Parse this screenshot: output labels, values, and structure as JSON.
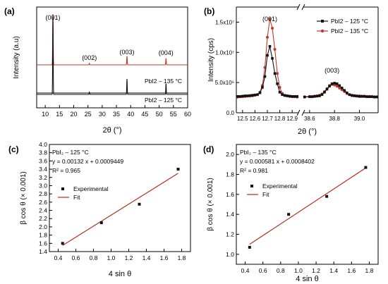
{
  "colors": {
    "red": "#c0392b",
    "black": "#111111",
    "dark_red": "#b03020"
  },
  "panels": {
    "a": {
      "label": "(a)"
    },
    "b": {
      "label": "(b)"
    },
    "c": {
      "label": "(c)"
    },
    "d": {
      "label": "(d)"
    }
  },
  "chart_data": [
    {
      "panel": "a",
      "type": "line",
      "xlabel": "2θ (°)",
      "ylabel": "Intensity (a.u)",
      "xlim": [
        7,
        60
      ],
      "xticks": [
        10,
        15,
        20,
        25,
        30,
        35,
        40,
        45,
        50,
        55,
        60
      ],
      "grid": false,
      "series": [
        {
          "name": "PbI2 – 135 °C",
          "color": "#c0392b",
          "peaks": [
            {
              "x": 12.7,
              "h": 1.0
            },
            {
              "x": 25.5,
              "h": 0.03
            },
            {
              "x": 38.7,
              "h": 0.17
            },
            {
              "x": 52.4,
              "h": 0.13
            }
          ]
        },
        {
          "name": "PbI2 – 125 °C",
          "color": "#111111",
          "peaks": [
            {
              "x": 12.7,
              "h": 1.0
            },
            {
              "x": 25.5,
              "h": 0.03
            },
            {
              "x": 38.7,
              "h": 0.2
            },
            {
              "x": 52.4,
              "h": 0.14
            }
          ]
        }
      ],
      "annotations": [
        {
          "text": "(001)",
          "x": 12.7
        },
        {
          "text": "(002)",
          "x": 25.5
        },
        {
          "text": "(003)",
          "x": 38.7
        },
        {
          "text": "(004)",
          "x": 52.4
        }
      ],
      "trace_labels": [
        "PbI2 – 135 °C",
        "PbI2 – 125 °C"
      ]
    },
    {
      "panel": "b",
      "type": "line",
      "xlabel": "2θ (°)",
      "ylabel": "Intensity (cps)",
      "ylim": [
        0,
        17500000.0
      ],
      "yticks": [
        "0.0",
        "5.0x10⁶",
        "1.0x10⁷",
        "1.5x10⁷"
      ],
      "ytick_values": [
        0,
        5000000,
        10000000,
        15000000
      ],
      "xlim_left": [
        12.45,
        12.95
      ],
      "xlim_right": [
        38.55,
        39.15
      ],
      "xticks_left": [
        "12.5",
        "12.6",
        "12.7",
        "12.8",
        "12.9"
      ],
      "xticks_left_values": [
        12.5,
        12.6,
        12.7,
        12.8,
        12.9
      ],
      "xticks_right": [
        "38.6",
        "38.8",
        "39.0"
      ],
      "xticks_right_values": [
        38.6,
        38.8,
        39.0
      ],
      "legend_position": "top-right",
      "grid": false,
      "annotations": [
        {
          "text": "(001)",
          "x": 12.72,
          "segment": "left"
        },
        {
          "text": "(003)",
          "x": 38.78,
          "segment": "right"
        }
      ],
      "series": [
        {
          "name": "PbI2 – 125 °C",
          "color": "#111111",
          "marker": "square",
          "left": {
            "x": [
              12.46,
              12.48,
              12.5,
              12.52,
              12.54,
              12.56,
              12.58,
              12.6,
              12.62,
              12.64,
              12.66,
              12.68,
              12.7,
              12.72,
              12.74,
              12.76,
              12.78,
              12.8,
              12.82,
              12.84,
              12.86,
              12.88,
              12.9,
              12.92,
              12.94
            ],
            "y": [
              2700000,
              2700000,
              2750000,
              2800000,
              2800000,
              2850000,
              2900000,
              2950000,
              3000000,
              3300000,
              4200000,
              6000000,
              9500000,
              11000000,
              9000000,
              6500000,
              4800000,
              3400000,
              3000000,
              2850000,
              2800000,
              2750000,
              2700000,
              2700000,
              2700000
            ]
          },
          "right": {
            "x": [
              38.56,
              38.6,
              38.62,
              38.64,
              38.66,
              38.68,
              38.7,
              38.72,
              38.74,
              38.76,
              38.78,
              38.8,
              38.82,
              38.84,
              38.86,
              38.88,
              38.9,
              38.92,
              38.94,
              38.96,
              38.98,
              39.0,
              39.02,
              39.04,
              39.06,
              39.08,
              39.1,
              39.12,
              39.14
            ],
            "y": [
              2600000,
              2650000,
              2650000,
              2700000,
              2750000,
              2800000,
              3000000,
              3400000,
              3900000,
              4400000,
              4800000,
              4900000,
              4800000,
              4500000,
              4100000,
              3700000,
              3300000,
              3000000,
              2850000,
              2800000,
              2750000,
              2700000,
              2700000,
              2700000,
              2650000,
              2650000,
              2650000,
              2600000,
              2600000
            ]
          }
        },
        {
          "name": "PbI2 – 135 °C",
          "color": "#c0392b",
          "marker": "circle",
          "left": {
            "x": [
              12.46,
              12.48,
              12.5,
              12.52,
              12.54,
              12.56,
              12.58,
              12.6,
              12.62,
              12.64,
              12.66,
              12.68,
              12.7,
              12.72,
              12.74,
              12.76,
              12.78,
              12.8,
              12.82,
              12.84,
              12.86,
              12.88,
              12.9,
              12.92,
              12.94
            ],
            "y": [
              2600000,
              2650000,
              2650000,
              2700000,
              2750000,
              2750000,
              2800000,
              2900000,
              3000000,
              3400000,
              4500000,
              7500000,
              12500000,
              15500000,
              14000000,
              10500000,
              6500000,
              4200000,
              3200000,
              2900000,
              2800000,
              2700000,
              2650000,
              2650000,
              2600000
            ]
          },
          "right": {
            "x": [
              38.56,
              38.6,
              38.62,
              38.64,
              38.66,
              38.68,
              38.7,
              38.72,
              38.74,
              38.76,
              38.78,
              38.8,
              38.82,
              38.84,
              38.86,
              38.88,
              38.9,
              38.92,
              38.94,
              38.96,
              38.98,
              39.0,
              39.02,
              39.04,
              39.06,
              39.08,
              39.1,
              39.12,
              39.14
            ],
            "y": [
              2650000,
              2700000,
              2700000,
              2750000,
              2800000,
              2900000,
              3100000,
              3500000,
              4000000,
              4500000,
              4700000,
              4600000,
              4400000,
              4100000,
              3800000,
              3500000,
              3200000,
              3000000,
              2900000,
              2850000,
              2800000,
              2800000,
              2750000,
              2750000,
              2700000,
              2700000,
              2700000,
              2650000,
              2650000
            ]
          }
        }
      ]
    },
    {
      "panel": "c",
      "type": "scatter",
      "xlabel": "4 sin θ",
      "ylabel": "β cos θ (× 0.001)",
      "xlim": [
        0.3,
        1.9
      ],
      "ylim": [
        1.4,
        4.0
      ],
      "xticks": [
        0.4,
        0.6,
        0.8,
        1.0,
        1.2,
        1.4,
        1.6,
        1.8
      ],
      "yticks": [
        1.4,
        1.6,
        1.8,
        2.0,
        2.2,
        2.4,
        2.6,
        2.8,
        3.0,
        3.2,
        3.4,
        3.6,
        3.8,
        4.0
      ],
      "x": [
        0.45,
        0.89,
        1.32,
        1.76
      ],
      "y": [
        1.6,
        2.1,
        2.55,
        3.4
      ],
      "fit": {
        "x": [
          0.45,
          1.76
        ],
        "y": [
          1.55,
          3.3
        ]
      },
      "text_lines": [
        "PbI₂ – 125 °C",
        "y = 0.00132 x + 0.0009449",
        "R² = 0.965"
      ],
      "legend": [
        "Experimental",
        "Fit"
      ],
      "legend_position": "left",
      "grid": false
    },
    {
      "panel": "d",
      "type": "scatter",
      "xlabel": "4 sin θ",
      "ylabel": "β cos θ (× 0.001)",
      "xlim": [
        0.3,
        1.9
      ],
      "ylim": [
        0.9,
        2.1
      ],
      "xticks": [
        0.4,
        0.6,
        0.8,
        1.0,
        1.2,
        1.4,
        1.6,
        1.8
      ],
      "yticks": [
        1.0,
        1.2,
        1.4,
        1.6,
        1.8,
        2.0
      ],
      "x": [
        0.45,
        0.89,
        1.32,
        1.76
      ],
      "y": [
        1.07,
        1.4,
        1.58,
        1.87
      ],
      "fit": {
        "x": [
          0.45,
          1.76
        ],
        "y": [
          1.1,
          1.865
        ]
      },
      "text_lines": [
        "PbI₂ – 135 °C",
        "y = 0.000581 x + 0.0008402",
        "R² = 0.981"
      ],
      "legend": [
        "Experimental",
        "Fit"
      ],
      "legend_position": "left",
      "grid": false
    }
  ]
}
